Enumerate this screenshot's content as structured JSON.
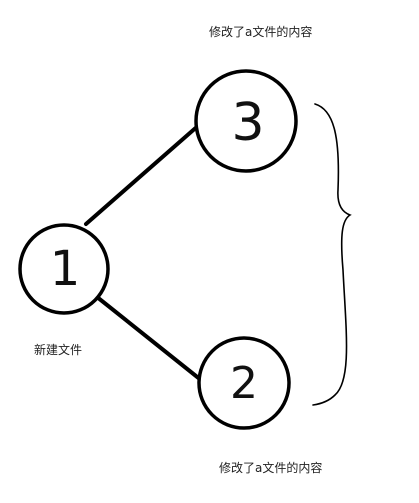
{
  "diagram": {
    "nodes": [
      {
        "id": "node-1",
        "label": "1",
        "description": "新建文件"
      },
      {
        "id": "node-3",
        "label": "3",
        "description": "修改了a文件的内容"
      },
      {
        "id": "node-2",
        "label": "2",
        "description": "修改了a文件的内容"
      }
    ],
    "edges": [
      {
        "from": "node-1",
        "to": "node-3"
      },
      {
        "from": "node-1",
        "to": "node-2"
      }
    ],
    "group_brace": {
      "groups": [
        "node-3",
        "node-2"
      ]
    }
  },
  "colors": {
    "stroke": "#000000",
    "background": "#ffffff"
  }
}
